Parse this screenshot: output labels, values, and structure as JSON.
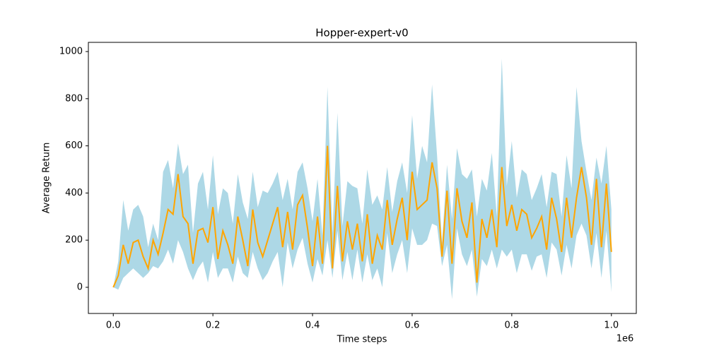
{
  "chart_data": {
    "type": "line",
    "title": "Hopper-expert-v0",
    "x_label": "Time steps",
    "y_label": "Average Return",
    "x_offset_label": "1e6",
    "xlim": [
      -50000,
      1050000
    ],
    "ylim": [
      -111,
      1039
    ],
    "xticks": [
      {
        "value": 0,
        "label": "0.0"
      },
      {
        "value": 200000,
        "label": "0.2"
      },
      {
        "value": 400000,
        "label": "0.4"
      },
      {
        "value": 600000,
        "label": "0.6"
      },
      {
        "value": 800000,
        "label": "0.8"
      },
      {
        "value": 1000000,
        "label": "1.0"
      }
    ],
    "yticks": [
      0,
      200,
      400,
      600,
      800,
      1000
    ],
    "x": [
      0,
      10000,
      20000,
      30000,
      40000,
      50000,
      60000,
      70000,
      80000,
      90000,
      100000,
      110000,
      120000,
      130000,
      140000,
      150000,
      160000,
      170000,
      180000,
      190000,
      200000,
      210000,
      220000,
      230000,
      240000,
      250000,
      260000,
      270000,
      280000,
      290000,
      300000,
      310000,
      320000,
      330000,
      340000,
      350000,
      360000,
      370000,
      380000,
      390000,
      400000,
      410000,
      420000,
      430000,
      440000,
      450000,
      460000,
      470000,
      480000,
      490000,
      500000,
      510000,
      520000,
      530000,
      540000,
      550000,
      560000,
      570000,
      580000,
      590000,
      600000,
      610000,
      620000,
      630000,
      640000,
      650000,
      660000,
      670000,
      680000,
      690000,
      700000,
      710000,
      720000,
      730000,
      740000,
      750000,
      760000,
      770000,
      780000,
      790000,
      800000,
      810000,
      820000,
      830000,
      840000,
      850000,
      860000,
      870000,
      880000,
      890000,
      900000,
      910000,
      920000,
      930000,
      940000,
      950000,
      960000,
      970000,
      980000,
      990000,
      1000000
    ],
    "series": [
      {
        "color": "#ffa500",
        "values": [
          0,
          50,
          180,
          100,
          190,
          200,
          130,
          80,
          200,
          140,
          230,
          330,
          310,
          480,
          300,
          270,
          100,
          240,
          250,
          190,
          340,
          120,
          240,
          180,
          100,
          300,
          200,
          90,
          330,
          190,
          130,
          200,
          270,
          340,
          170,
          320,
          160,
          350,
          390,
          250,
          90,
          300,
          100,
          600,
          80,
          430,
          110,
          280,
          160,
          270,
          110,
          310,
          100,
          220,
          160,
          370,
          180,
          290,
          380,
          200,
          490,
          330,
          350,
          370,
          530,
          420,
          130,
          410,
          100,
          420,
          280,
          210,
          360,
          20,
          290,
          210,
          330,
          170,
          510,
          260,
          350,
          240,
          330,
          310,
          210,
          250,
          300,
          160,
          380,
          290,
          150,
          380,
          210,
          380,
          510,
          380,
          180,
          460,
          170,
          440,
          150
        ]
      }
    ],
    "band": {
      "color": "#add8e6",
      "lower": [
        0,
        -10,
        40,
        60,
        80,
        60,
        40,
        60,
        90,
        80,
        110,
        160,
        100,
        200,
        150,
        80,
        30,
        80,
        110,
        20,
        150,
        40,
        80,
        80,
        20,
        130,
        60,
        40,
        150,
        80,
        30,
        60,
        110,
        150,
        0,
        190,
        80,
        160,
        210,
        100,
        20,
        120,
        50,
        200,
        40,
        240,
        30,
        150,
        30,
        160,
        20,
        140,
        30,
        80,
        0,
        230,
        60,
        140,
        200,
        60,
        250,
        180,
        180,
        200,
        270,
        260,
        90,
        180,
        -50,
        250,
        140,
        90,
        160,
        -40,
        120,
        90,
        160,
        80,
        160,
        130,
        160,
        60,
        140,
        140,
        70,
        130,
        140,
        40,
        190,
        160,
        50,
        180,
        80,
        220,
        270,
        220,
        80,
        230,
        40,
        240,
        -20
      ],
      "upper": [
        0,
        110,
        370,
        240,
        330,
        350,
        300,
        170,
        270,
        200,
        490,
        540,
        420,
        610,
        480,
        520,
        230,
        440,
        490,
        330,
        560,
        310,
        420,
        400,
        270,
        480,
        360,
        290,
        490,
        340,
        410,
        400,
        440,
        490,
        370,
        460,
        330,
        490,
        530,
        420,
        280,
        460,
        220,
        850,
        230,
        740,
        260,
        450,
        430,
        420,
        270,
        500,
        350,
        390,
        330,
        510,
        320,
        450,
        530,
        400,
        730,
        460,
        600,
        530,
        860,
        560,
        190,
        520,
        290,
        590,
        480,
        460,
        500,
        300,
        460,
        410,
        570,
        300,
        970,
        430,
        620,
        380,
        500,
        480,
        370,
        420,
        480,
        340,
        490,
        480,
        300,
        560,
        420,
        850,
        620,
        490,
        370,
        550,
        440,
        600,
        330
      ]
    }
  }
}
